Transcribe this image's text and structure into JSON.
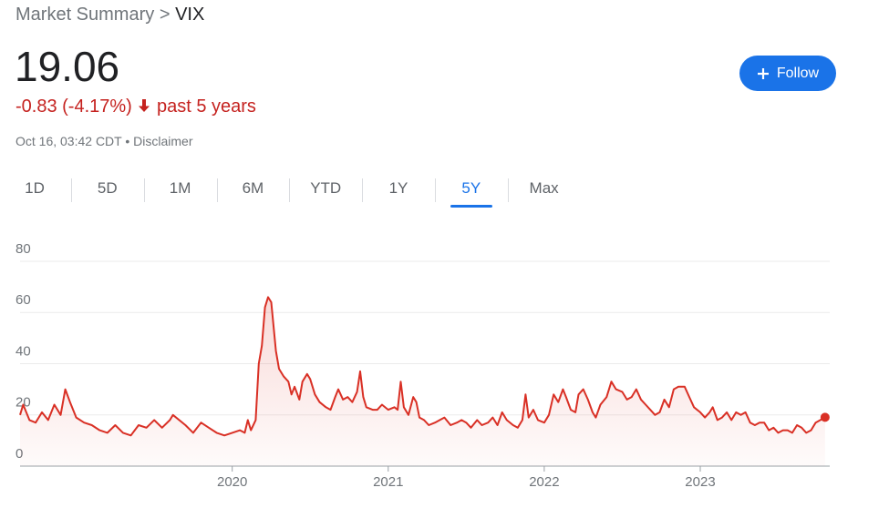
{
  "breadcrumb": {
    "parent": "Market Summary",
    "separator": ">",
    "current": "VIX"
  },
  "price": "19.06",
  "change": "-0.83 (-4.17%)",
  "change_period": "past 5 years",
  "follow_button": "Follow",
  "timestamp": "Oct 16, 03:42 CDT",
  "bullet": "•",
  "disclaimer": "Disclaimer",
  "tabs": [
    "1D",
    "5D",
    "1M",
    "6M",
    "YTD",
    "1Y",
    "5Y",
    "Max"
  ],
  "selected_tab": 6,
  "chart_data": {
    "type": "line",
    "color": "#d93025",
    "area": true,
    "grid": true,
    "xlim": [
      2018.64,
      2023.83
    ],
    "xticks": [
      2020,
      2021,
      2022,
      2023
    ],
    "ylim": [
      0,
      80
    ],
    "yticks": [
      0,
      20,
      40,
      60,
      80
    ],
    "x": [
      2018.64,
      2018.66,
      2018.7,
      2018.74,
      2018.78,
      2018.82,
      2018.86,
      2018.9,
      2018.93,
      2018.96,
      2019.0,
      2019.05,
      2019.1,
      2019.15,
      2019.2,
      2019.25,
      2019.3,
      2019.35,
      2019.4,
      2019.45,
      2019.5,
      2019.55,
      2019.6,
      2019.62,
      2019.7,
      2019.75,
      2019.8,
      2019.85,
      2019.9,
      2019.95,
      2020.0,
      2020.05,
      2020.08,
      2020.1,
      2020.12,
      2020.15,
      2020.17,
      2020.19,
      2020.21,
      2020.23,
      2020.25,
      2020.28,
      2020.3,
      2020.33,
      2020.36,
      2020.38,
      2020.4,
      2020.43,
      2020.45,
      2020.48,
      2020.5,
      2020.53,
      2020.56,
      2020.6,
      2020.63,
      2020.66,
      2020.68,
      2020.71,
      2020.74,
      2020.77,
      2020.8,
      2020.82,
      2020.84,
      2020.86,
      2020.9,
      2020.93,
      2020.96,
      2021.0,
      2021.04,
      2021.06,
      2021.08,
      2021.1,
      2021.13,
      2021.16,
      2021.18,
      2021.2,
      2021.23,
      2021.26,
      2021.3,
      2021.33,
      2021.36,
      2021.4,
      2021.44,
      2021.47,
      2021.5,
      2021.53,
      2021.57,
      2021.6,
      2021.64,
      2021.67,
      2021.7,
      2021.73,
      2021.76,
      2021.8,
      2021.83,
      2021.86,
      2021.88,
      2021.9,
      2021.93,
      2021.96,
      2022.0,
      2022.03,
      2022.06,
      2022.09,
      2022.12,
      2022.14,
      2022.17,
      2022.2,
      2022.22,
      2022.25,
      2022.28,
      2022.31,
      2022.33,
      2022.36,
      2022.4,
      2022.43,
      2022.46,
      2022.5,
      2022.53,
      2022.56,
      2022.59,
      2022.62,
      2022.65,
      2022.68,
      2022.71,
      2022.74,
      2022.77,
      2022.8,
      2022.83,
      2022.86,
      2022.9,
      2022.93,
      2022.96,
      2023.0,
      2023.03,
      2023.06,
      2023.08,
      2023.11,
      2023.14,
      2023.17,
      2023.2,
      2023.23,
      2023.26,
      2023.29,
      2023.32,
      2023.35,
      2023.38,
      2023.41,
      2023.44,
      2023.47,
      2023.5,
      2023.53,
      2023.56,
      2023.59,
      2023.62,
      2023.65,
      2023.68,
      2023.71,
      2023.74,
      2023.77,
      2023.8
    ],
    "values": [
      20,
      24,
      18,
      17,
      21,
      18,
      24,
      20,
      30,
      25,
      19,
      17,
      16,
      14,
      13,
      16,
      13,
      12,
      16,
      15,
      18,
      15,
      18,
      20,
      16,
      13,
      17,
      15,
      13,
      12,
      13,
      14,
      13,
      18,
      14,
      18,
      40,
      47,
      62,
      66,
      64,
      45,
      38,
      35,
      33,
      28,
      31,
      26,
      33,
      36,
      34,
      28,
      25,
      23,
      22,
      27,
      30,
      26,
      27,
      25,
      29,
      37,
      27,
      23,
      22,
      22,
      24,
      22,
      23,
      22,
      33,
      23,
      20,
      27,
      25,
      19,
      18,
      16,
      17,
      18,
      19,
      16,
      17,
      18,
      17,
      15,
      18,
      16,
      17,
      19,
      16,
      21,
      18,
      16,
      15,
      18,
      28,
      19,
      22,
      18,
      17,
      20,
      28,
      25,
      30,
      27,
      22,
      21,
      28,
      30,
      26,
      21,
      19,
      24,
      27,
      33,
      30,
      29,
      26,
      27,
      30,
      26,
      24,
      22,
      20,
      21,
      26,
      23,
      30,
      31,
      31,
      27,
      23,
      21,
      19,
      21,
      23,
      18,
      19,
      21,
      18,
      21,
      20,
      21,
      17,
      16,
      17,
      17,
      14,
      15,
      13,
      14,
      14,
      13,
      16,
      15,
      13,
      14,
      17,
      18,
      19.06
    ]
  }
}
